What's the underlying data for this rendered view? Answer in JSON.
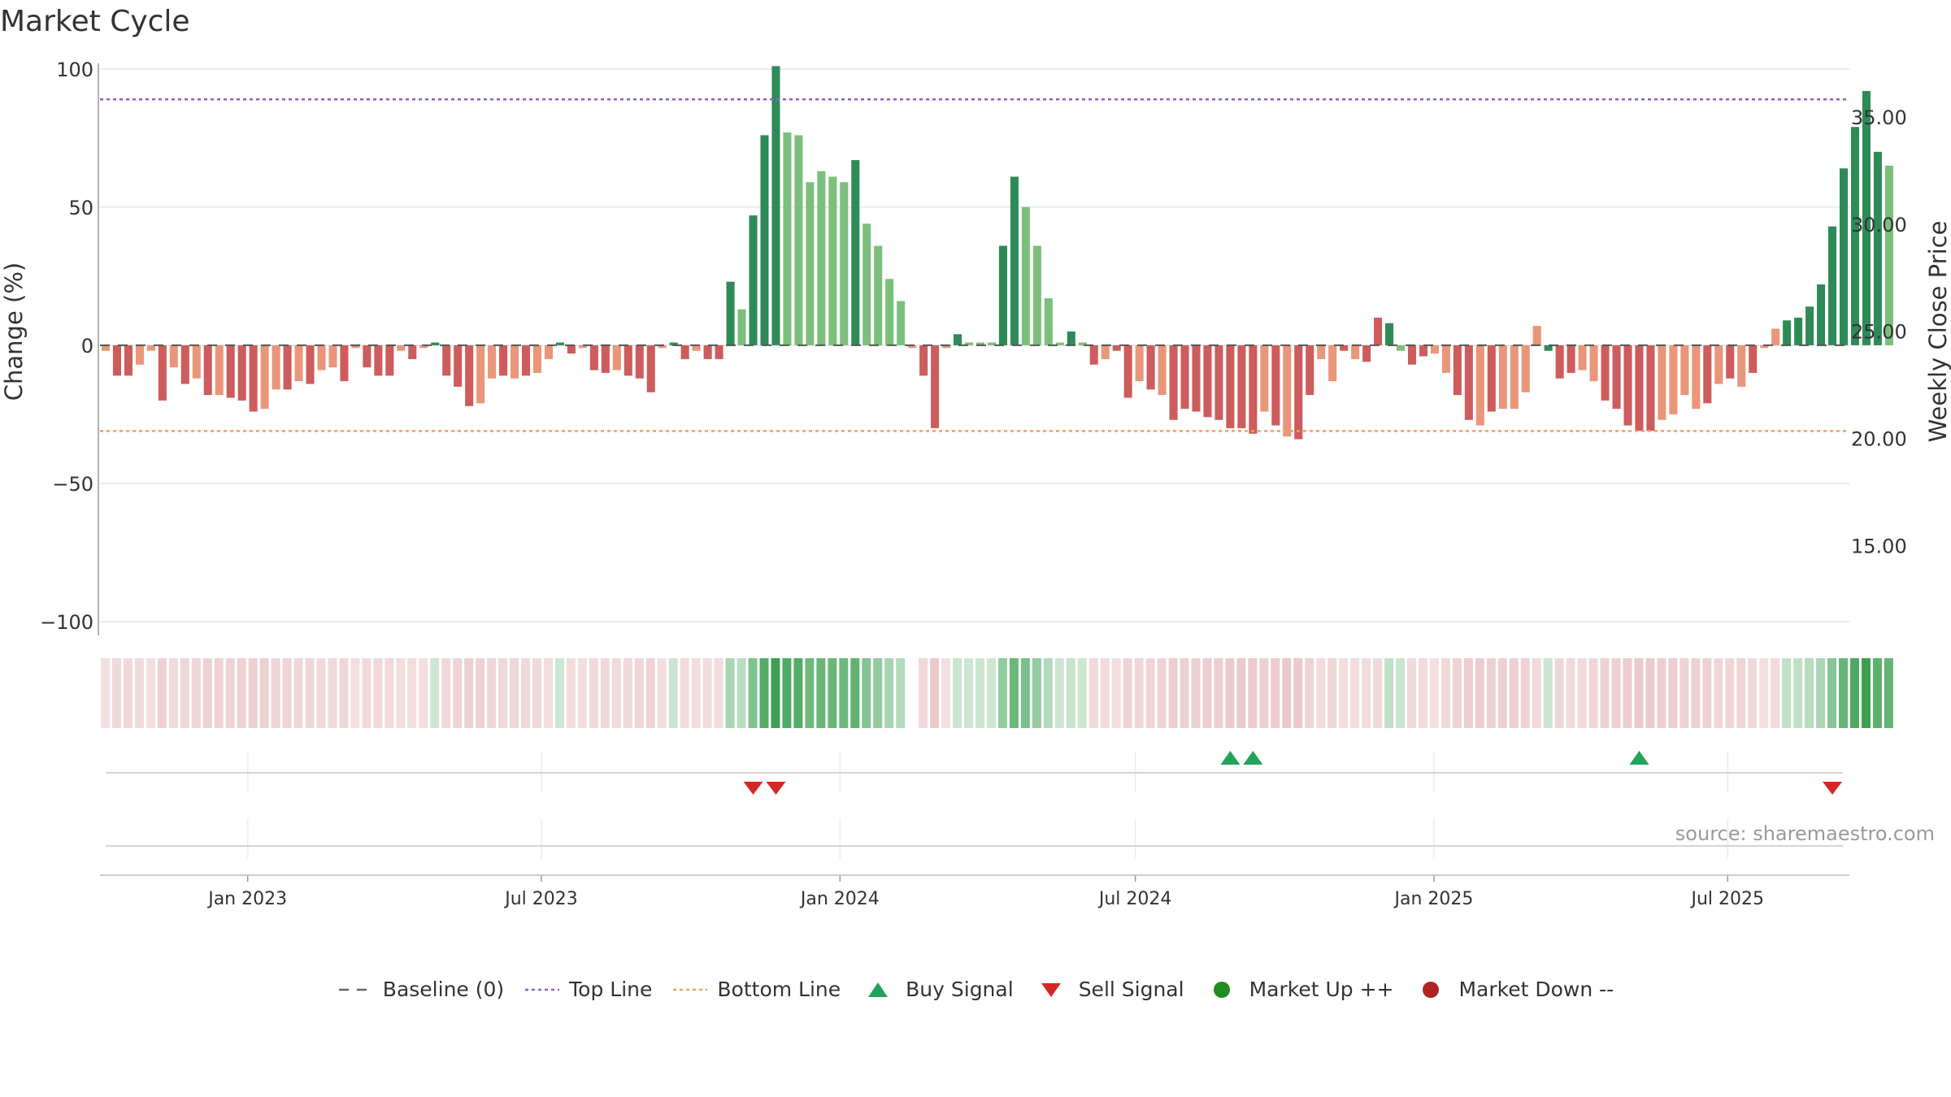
{
  "title": "Market Cycle",
  "source": "source: sharemaestro.com",
  "colors": {
    "strong_up": "#2e8b57",
    "mild_up": "#7cbf7c",
    "strong_down": "#cd5c5c",
    "mild_down": "#e9967a",
    "top_line": "#9b59d0",
    "bottom_line": "#f0a060",
    "buy": "#22a35a",
    "sell": "#d62728",
    "market_up": "#228b22",
    "market_down": "#b22222"
  },
  "legend": [
    {
      "key": "baseline",
      "label": "Baseline (0)",
      "icon": "dash-line-icon"
    },
    {
      "key": "top",
      "label": "Top Line",
      "icon": "dotted-purple-line-icon"
    },
    {
      "key": "bottom",
      "label": "Bottom Line",
      "icon": "dotted-orange-line-icon"
    },
    {
      "key": "buy",
      "label": "Buy Signal",
      "icon": "up-triangle-icon"
    },
    {
      "key": "sell",
      "label": "Sell Signal",
      "icon": "down-triangle-icon"
    },
    {
      "key": "mup",
      "label": "Market Up ++",
      "icon": "green-dot-icon"
    },
    {
      "key": "mdown",
      "label": "Market Down --",
      "icon": "red-dot-icon"
    }
  ],
  "chart_data": {
    "type": "bar",
    "title": "Market Cycle",
    "ylabel_left": "Change (%)",
    "ylabel_right": "Weekly Close Price",
    "y_ticks": [
      100,
      50,
      0,
      -50,
      -100
    ],
    "y_tick_labels": [
      "100",
      "50",
      "0",
      "−50",
      "−100"
    ],
    "ylim": [
      -105,
      102
    ],
    "y2_ticks": [
      35,
      30,
      25,
      20,
      15
    ],
    "y2_tick_labels": [
      "35.00",
      "30.00",
      "25.00",
      "20.00",
      "15.00"
    ],
    "y2lim": [
      10.8,
      37.5
    ],
    "top_line": 89,
    "bottom_line": -31,
    "x_start": "2022-10-02",
    "x_end": "2025-09-14",
    "x_ticks": [
      {
        "date": "2023-01-01",
        "label": "Jan 2023"
      },
      {
        "date": "2023-07-01",
        "label": "Jul 2023"
      },
      {
        "date": "2024-01-01",
        "label": "Jan 2024"
      },
      {
        "date": "2024-07-01",
        "label": "Jul 2024"
      },
      {
        "date": "2025-01-01",
        "label": "Jan 2025"
      },
      {
        "date": "2025-07-01",
        "label": "Jul 2025"
      }
    ],
    "bars_start": "2022-10-02",
    "bar_interval_days": 7,
    "values": [
      -2,
      -11,
      -11,
      -7,
      -2,
      -20,
      -8,
      -14,
      -12,
      -18,
      -18,
      -19,
      -20,
      -24,
      -23,
      -16,
      -16,
      -13,
      -14,
      -9,
      -8,
      -13,
      -1,
      -8,
      -11,
      -11,
      -2,
      -5,
      -1,
      1,
      -11,
      -15,
      -22,
      -21,
      -12,
      -11,
      -12,
      -11,
      -10,
      -5,
      1,
      -3,
      -1,
      -9,
      -10,
      -9,
      -11,
      -12,
      -17,
      -1,
      1,
      -5,
      -2,
      -5,
      -5,
      23,
      13,
      47,
      76,
      101,
      77,
      76,
      59,
      63,
      61,
      59,
      67,
      44,
      36,
      24,
      16,
      -1,
      -11,
      -30,
      -1,
      4,
      1,
      1,
      1,
      36,
      61,
      50,
      36,
      17,
      1,
      5,
      1,
      -7,
      -5,
      -2,
      -19,
      -13,
      -16,
      -18,
      -27,
      -23,
      -24,
      -26,
      -27,
      -30,
      -30,
      -32,
      -24,
      -29,
      -33,
      -34,
      -18,
      -5,
      -13,
      -2,
      -5,
      -6,
      10,
      8,
      -2,
      -7,
      -4,
      -3,
      -10,
      -18,
      -27,
      -29,
      -24,
      -23,
      -23,
      -17,
      7,
      -2,
      -12,
      -10,
      -9,
      -13,
      -20,
      -23,
      -29,
      -31,
      -31,
      -27,
      -25,
      -18,
      -23,
      -21,
      -14,
      -12,
      -15,
      -10,
      -1,
      6,
      9,
      10,
      14,
      22,
      43,
      64,
      79,
      92,
      70,
      65
    ],
    "bar_class": [
      "md",
      "sd",
      "sd",
      "md",
      "md",
      "sd",
      "md",
      "sd",
      "md",
      "sd",
      "md",
      "sd",
      "sd",
      "sd",
      "md",
      "md",
      "sd",
      "md",
      "sd",
      "md",
      "md",
      "sd",
      "md",
      "sd",
      "sd",
      "sd",
      "md",
      "sd",
      "md",
      "su",
      "sd",
      "sd",
      "sd",
      "md",
      "md",
      "sd",
      "md",
      "sd",
      "md",
      "md",
      "su",
      "sd",
      "md",
      "sd",
      "sd",
      "md",
      "sd",
      "sd",
      "sd",
      "md",
      "su",
      "sd",
      "md",
      "sd",
      "sd",
      "su",
      "mu",
      "su",
      "su",
      "su",
      "mu",
      "mu",
      "mu",
      "mu",
      "mu",
      "mu",
      "su",
      "mu",
      "mu",
      "mu",
      "mu",
      "md",
      "sd",
      "sd",
      "md",
      "su",
      "mu",
      "mu",
      "mu",
      "su",
      "su",
      "mu",
      "mu",
      "mu",
      "mu",
      "su",
      "mu",
      "sd",
      "md",
      "sd",
      "sd",
      "md",
      "sd",
      "md",
      "sd",
      "sd",
      "sd",
      "sd",
      "sd",
      "sd",
      "sd",
      "sd",
      "md",
      "sd",
      "md",
      "sd",
      "sd",
      "md",
      "md",
      "sd",
      "md",
      "sd",
      "sd",
      "su",
      "mu",
      "sd",
      "sd",
      "md",
      "md",
      "sd",
      "sd",
      "md",
      "sd",
      "md",
      "md",
      "md",
      "md",
      "su",
      "sd",
      "sd",
      "md",
      "md",
      "sd",
      "sd",
      "sd",
      "sd",
      "sd",
      "md",
      "md",
      "md",
      "md",
      "sd",
      "md",
      "sd",
      "md",
      "sd",
      "md",
      "md",
      "su",
      "su",
      "su",
      "su",
      "su",
      "su",
      "su",
      "su",
      "su",
      "mu",
      "mu"
    ],
    "price_line": "not visible",
    "buy_signals": [
      "2024-08-25",
      "2024-09-08",
      "2025-05-04"
    ],
    "sell_signals": [
      "2023-11-05",
      "2023-11-19",
      "2025-08-31"
    ],
    "regime_strip": {
      "description": "Market regime heat strip (green = up, red = down), intensity by strength",
      "gap_after": "2024-02-11"
    }
  }
}
